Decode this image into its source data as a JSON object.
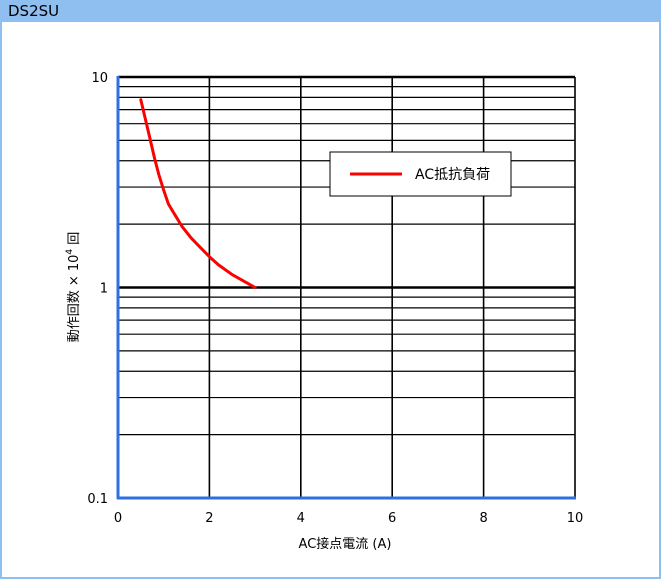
{
  "header": {
    "title": "DS2SU"
  },
  "chart_data": {
    "type": "line",
    "title": "",
    "xlabel": "AC接点電流 (A)",
    "ylabel": {
      "prefix": "動作回数 × 10",
      "superscript": "4",
      "suffix": " 回"
    },
    "xlim": [
      0,
      10
    ],
    "ylim": [
      0.1,
      10
    ],
    "y_scale": "log",
    "grid": true,
    "legend_position": "top-right",
    "x_ticks": [
      "0",
      "2",
      "4",
      "6",
      "8",
      "10"
    ],
    "y_ticks": [
      "0.1",
      "1",
      "10"
    ],
    "series": [
      {
        "name": "AC抵抗負荷",
        "color": "#ff0000",
        "x": [
          0.5,
          0.6,
          0.7,
          0.8,
          0.9,
          1.0,
          1.1,
          1.2,
          1.4,
          1.6,
          1.8,
          2.0,
          2.2,
          2.5,
          3.0
        ],
        "y": [
          7.8,
          6.3,
          5.1,
          4.1,
          3.4,
          2.9,
          2.5,
          2.3,
          1.95,
          1.72,
          1.55,
          1.4,
          1.28,
          1.15,
          1.0
        ]
      }
    ]
  }
}
